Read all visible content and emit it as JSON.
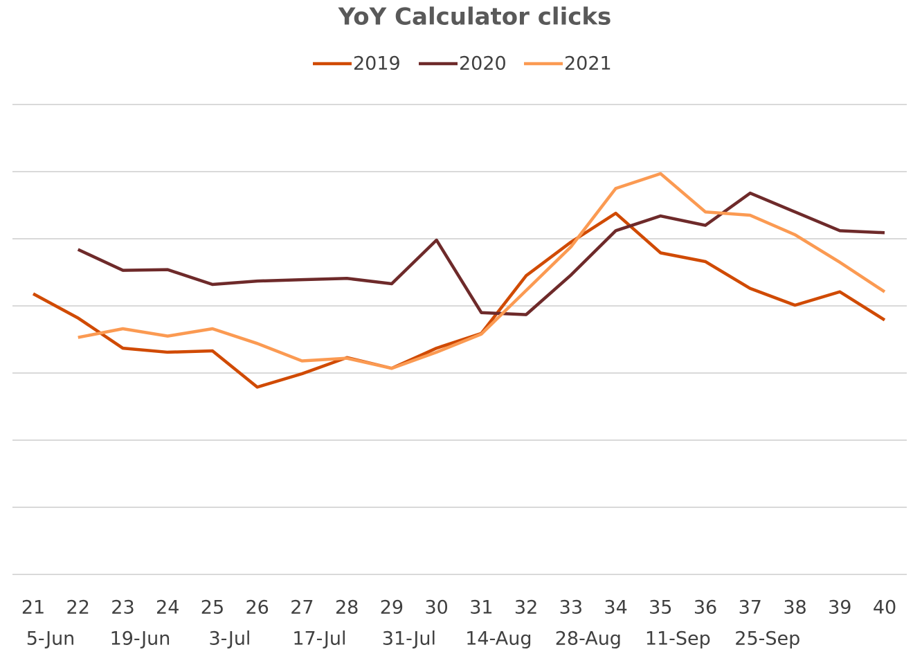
{
  "chart_data": {
    "type": "line",
    "title": "YoY Calculator clicks",
    "categories": [
      "21",
      "22",
      "23",
      "24",
      "25",
      "26",
      "27",
      "28",
      "29",
      "30",
      "31",
      "32",
      "33",
      "34",
      "35",
      "36",
      "37",
      "38",
      "39",
      "40"
    ],
    "category_dates": [
      "5-Jun",
      null,
      "19-Jun",
      null,
      "3-Jul",
      null,
      "17-Jul",
      null,
      "31-Jul",
      null,
      "14-Aug",
      null,
      "28-Aug",
      null,
      "11-Sep",
      null,
      "25-Sep",
      null,
      null,
      null
    ],
    "series": [
      {
        "name": "2019",
        "color": "#d04a02",
        "values": [
          4.18,
          3.82,
          3.37,
          3.31,
          3.33,
          2.79,
          2.99,
          3.23,
          3.07,
          3.37,
          3.59,
          4.45,
          4.95,
          5.38,
          4.79,
          4.66,
          4.26,
          4.01,
          4.21,
          3.79
        ]
      },
      {
        "name": "2020",
        "color": "#6e2a2a",
        "values": [
          null,
          4.84,
          4.53,
          4.54,
          4.32,
          4.37,
          4.39,
          4.41,
          4.33,
          4.98,
          3.9,
          3.87,
          4.46,
          5.12,
          5.34,
          5.2,
          5.68,
          5.4,
          5.12,
          5.09
        ]
      },
      {
        "name": "2021",
        "color": "#fb9a52",
        "values": [
          null,
          3.53,
          3.66,
          3.55,
          3.66,
          3.44,
          3.18,
          3.22,
          3.07,
          3.31,
          3.58,
          4.23,
          4.88,
          5.75,
          5.97,
          5.4,
          5.35,
          5.06,
          4.65,
          4.21
        ]
      }
    ],
    "ylim": [
      0,
      7
    ],
    "yticks": [
      0,
      1,
      2,
      3,
      4,
      5,
      6,
      7
    ],
    "grid": true,
    "legend": "top"
  }
}
